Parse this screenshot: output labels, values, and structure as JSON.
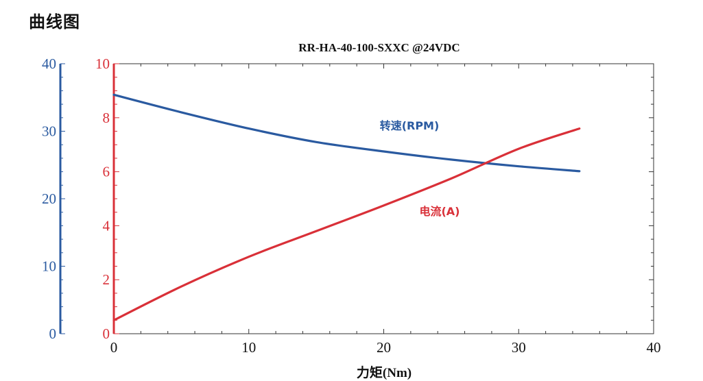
{
  "page": {
    "title": "曲线图"
  },
  "chart_data": {
    "type": "line",
    "title": "RR-HA-40-100-SXXC @24VDC",
    "xlabel": "力矩(Nm)",
    "xlim": [
      0,
      40
    ],
    "x_ticks": [
      "0",
      "10",
      "20",
      "30",
      "40"
    ],
    "y_left": {
      "axis": "speed",
      "lim": [
        0,
        40
      ],
      "ticks": [
        "0",
        "10",
        "20",
        "30",
        "40"
      ],
      "color": "#2a5aa0"
    },
    "y_right": {
      "axis": "current",
      "lim": [
        0,
        10
      ],
      "ticks": [
        "0",
        "2",
        "4",
        "6",
        "8",
        "10"
      ],
      "color": "#d93038"
    },
    "series": [
      {
        "name": "转速(RPM)",
        "color": "#2a5aa0",
        "axis": "y_right",
        "x": [
          0,
          5,
          10,
          15,
          20,
          25,
          30,
          34.5
        ],
        "y": [
          8.85,
          8.2,
          7.6,
          7.1,
          6.75,
          6.45,
          6.2,
          6.02
        ]
      },
      {
        "name": "电流(A)",
        "color": "#d93038",
        "axis": "y_right",
        "x": [
          0,
          5,
          10,
          15,
          20,
          25,
          30,
          34.5
        ],
        "y": [
          0.5,
          1.75,
          2.85,
          3.8,
          4.75,
          5.75,
          6.85,
          7.6
        ]
      }
    ]
  }
}
